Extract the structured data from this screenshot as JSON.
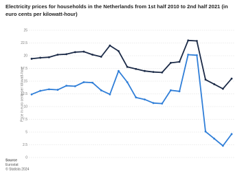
{
  "chart_data": {
    "type": "line",
    "title": "Electricity prices for households in the Netherlands from 1st half 2010 to 2nd half 2021 (in euro cents per kilowatt-hour)",
    "y_label": "Price in euro cents per kilowatt-hour",
    "categories": [
      null,
      null,
      null,
      null,
      null,
      null,
      null,
      null,
      null,
      null,
      null,
      null,
      null,
      null,
      null,
      null,
      null,
      null,
      null,
      null,
      null,
      null,
      null,
      null
    ],
    "series": [
      {
        "color": "#1b2a47",
        "values": [
          19.4,
          19.6,
          19.7,
          20.2,
          20.3,
          20.7,
          20.8,
          20.2,
          19.8,
          22.0,
          20.9,
          17.8,
          17.4,
          17.0,
          16.8,
          16.7,
          18.6,
          18.8,
          23.0,
          22.9,
          15.3,
          14.4,
          13.5,
          15.5
        ]
      },
      {
        "color": "#2f7ed8",
        "values": [
          12.4,
          13.1,
          13.4,
          13.3,
          14.1,
          14.0,
          14.8,
          14.7,
          13.2,
          12.4,
          17.0,
          14.8,
          11.8,
          11.4,
          10.7,
          10.6,
          13.2,
          13.0,
          20.2,
          20.1,
          5.1,
          3.7,
          2.3,
          4.6
        ]
      }
    ],
    "ylim": [
      0,
      25
    ],
    "yticks": [
      0,
      2.5,
      5,
      7.5,
      10,
      12.5,
      15,
      17.5,
      20,
      22.5,
      25
    ],
    "grid": true,
    "source": [
      "Source",
      "Eurostat",
      "© Statista 2024"
    ]
  }
}
